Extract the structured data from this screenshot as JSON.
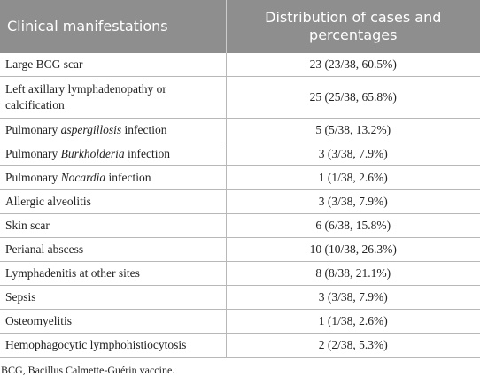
{
  "table": {
    "header": [
      "Clinical manifestations",
      "Distribution of cases and percentages"
    ],
    "rows": [
      [
        [
          {
            "text": "Large BCG scar"
          }
        ],
        "23 (23/38, 60.5%)"
      ],
      [
        [
          {
            "text": "Left axillary lymphadenopathy or calcification"
          }
        ],
        "25 (25/38, 65.8%)"
      ],
      [
        [
          {
            "text": "Pulmonary "
          },
          {
            "text": "aspergillosis",
            "italic": true
          },
          {
            "text": " infection"
          }
        ],
        "5 (5/38, 13.2%)"
      ],
      [
        [
          {
            "text": "Pulmonary "
          },
          {
            "text": "Burkholderia",
            "italic": true
          },
          {
            "text": " infection"
          }
        ],
        "3 (3/38, 7.9%)"
      ],
      [
        [
          {
            "text": "Pulmonary "
          },
          {
            "text": "Nocardia",
            "italic": true
          },
          {
            "text": " infection"
          }
        ],
        "1 (1/38, 2.6%)"
      ],
      [
        [
          {
            "text": "Allergic alveolitis"
          }
        ],
        "3 (3/38, 7.9%)"
      ],
      [
        [
          {
            "text": "Skin scar"
          }
        ],
        "6 (6/38, 15.8%)"
      ],
      [
        [
          {
            "text": "Perianal abscess"
          }
        ],
        "10 (10/38, 26.3%)"
      ],
      [
        [
          {
            "text": "Lymphadenitis at other sites"
          }
        ],
        "8 (8/38, 21.1%)"
      ],
      [
        [
          {
            "text": "Sepsis"
          }
        ],
        "3 (3/38, 7.9%)"
      ],
      [
        [
          {
            "text": "Osteomyelitis"
          }
        ],
        "1 (1/38, 2.6%)"
      ],
      [
        [
          {
            "text": "Hemophagocytic lymphohistiocytosis"
          }
        ],
        "2 (2/38, 5.3%)"
      ]
    ]
  },
  "footnote": "BCG, Bacillus Calmette-Guérin vaccine."
}
